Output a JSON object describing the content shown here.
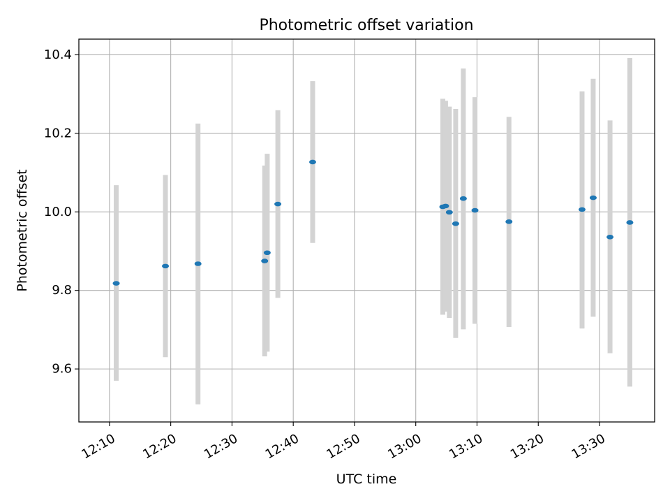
{
  "chart_data": {
    "type": "scatter",
    "title": "Photometric offset variation",
    "xlabel": "UTC time",
    "ylabel": "Photometric offset",
    "x_unit": "UTC time (HH:MM)",
    "xlim": [
      "12:05",
      "13:39"
    ],
    "ylim": [
      9.465,
      10.44
    ],
    "xticks": [
      "12:10",
      "12:20",
      "12:30",
      "12:40",
      "12:50",
      "13:00",
      "13:10",
      "13:20",
      "13:30"
    ],
    "yticks": [
      "9.6",
      "9.8",
      "10.0",
      "10.2",
      "10.4"
    ],
    "grid": true,
    "legend": false,
    "colors": {
      "points": "#1f77b4",
      "errorbars": "#d3d3d3",
      "grid": "#b0b0b0"
    },
    "points": [
      {
        "x": "12:11:06",
        "y": 9.818,
        "yerr_low": 9.57,
        "yerr_high": 10.068
      },
      {
        "x": "12:19:08",
        "y": 9.862,
        "yerr_low": 9.63,
        "yerr_high": 10.094
      },
      {
        "x": "12:24:27",
        "y": 9.868,
        "yerr_low": 9.51,
        "yerr_high": 10.225
      },
      {
        "x": "12:35:20",
        "y": 9.875,
        "yerr_low": 9.632,
        "yerr_high": 10.118
      },
      {
        "x": "12:35:45",
        "y": 9.896,
        "yerr_low": 9.644,
        "yerr_high": 10.148
      },
      {
        "x": "12:37:29",
        "y": 10.02,
        "yerr_low": 9.781,
        "yerr_high": 10.259
      },
      {
        "x": "12:43:10",
        "y": 10.127,
        "yerr_low": 9.921,
        "yerr_high": 10.333
      },
      {
        "x": "13:04:25",
        "y": 10.013,
        "yerr_low": 9.738,
        "yerr_high": 10.288
      },
      {
        "x": "13:04:52",
        "y": 10.015,
        "yerr_low": 9.746,
        "yerr_high": 10.283
      },
      {
        "x": "13:05:29",
        "y": 9.999,
        "yerr_low": 9.73,
        "yerr_high": 10.268
      },
      {
        "x": "13:06:31",
        "y": 9.97,
        "yerr_low": 9.679,
        "yerr_high": 10.262
      },
      {
        "x": "13:07:46",
        "y": 10.034,
        "yerr_low": 9.701,
        "yerr_high": 10.365
      },
      {
        "x": "13:09:40",
        "y": 10.004,
        "yerr_low": 9.715,
        "yerr_high": 10.292
      },
      {
        "x": "13:15:13",
        "y": 9.975,
        "yerr_low": 9.707,
        "yerr_high": 10.242
      },
      {
        "x": "13:27:09",
        "y": 10.006,
        "yerr_low": 9.703,
        "yerr_high": 10.307
      },
      {
        "x": "13:28:58",
        "y": 10.036,
        "yerr_low": 9.733,
        "yerr_high": 10.339
      },
      {
        "x": "13:31:43",
        "y": 9.936,
        "yerr_low": 9.64,
        "yerr_high": 10.233
      },
      {
        "x": "13:34:57",
        "y": 9.973,
        "yerr_low": 9.555,
        "yerr_high": 10.392
      }
    ]
  }
}
